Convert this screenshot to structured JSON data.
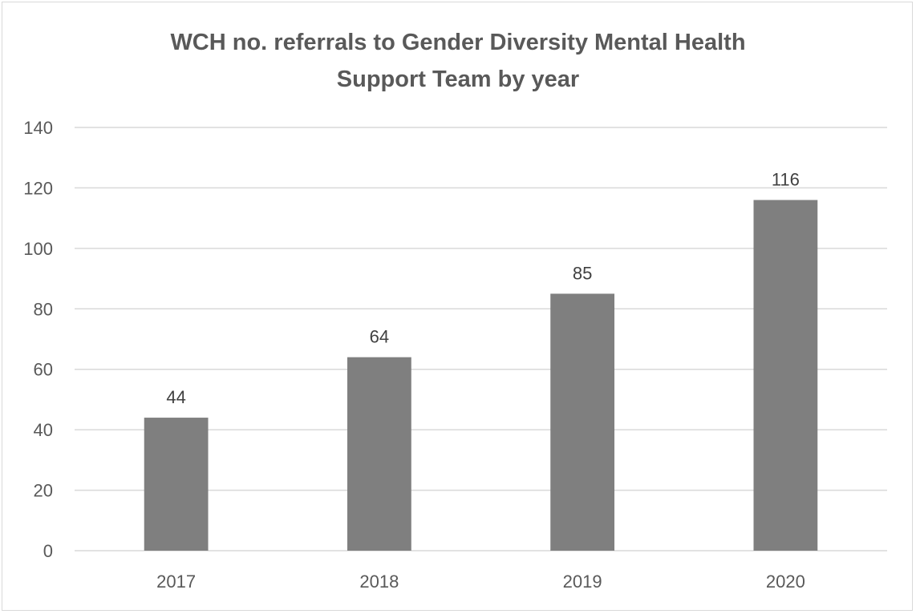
{
  "chart_data": {
    "type": "bar",
    "title_lines": [
      "WCH no. referrals to Gender Diversity Mental Health",
      "Support Team by year"
    ],
    "categories": [
      "2017",
      "2018",
      "2019",
      "2020"
    ],
    "values": [
      44,
      64,
      85,
      116
    ],
    "data_labels": [
      "44",
      "64",
      "85",
      "116"
    ],
    "y_ticks": [
      "0",
      "20",
      "40",
      "60",
      "80",
      "100",
      "120",
      "140"
    ],
    "ylim": [
      0,
      140
    ],
    "y_step": 20,
    "grid": true,
    "legend": "none",
    "bar_color": "#7f7f7f",
    "grid_color": "#d9d9d9",
    "text_color": "#595959"
  }
}
